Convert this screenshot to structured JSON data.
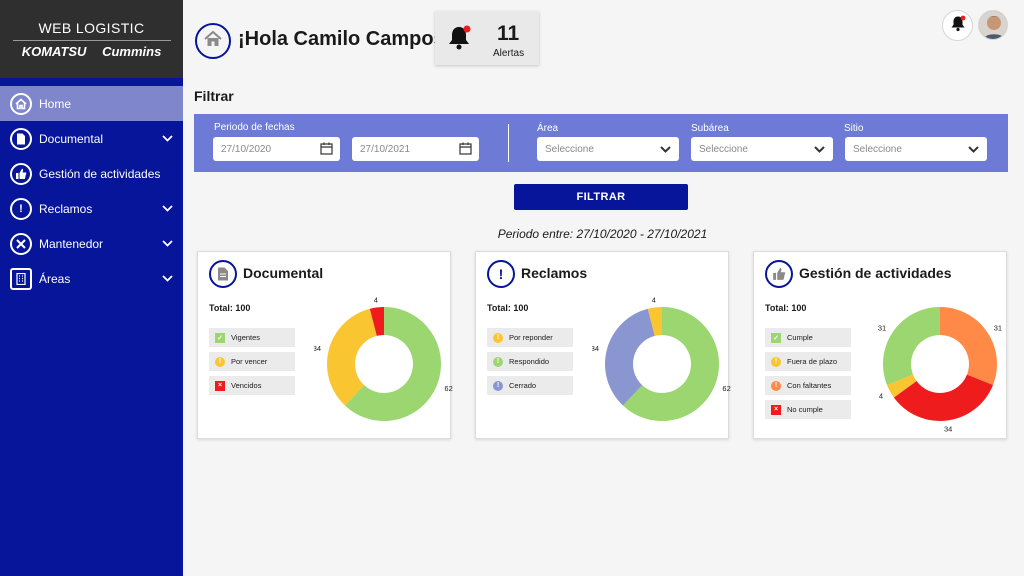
{
  "brand": {
    "title": "WEB LOGISTIC",
    "logo_left": "KOMATSU",
    "logo_right": "Cummins"
  },
  "nav": [
    {
      "label": "Home",
      "icon": "home-icon",
      "active": true,
      "expandable": false
    },
    {
      "label": "Documental",
      "icon": "document-icon",
      "active": false,
      "expandable": true
    },
    {
      "label": "Gestión de actividades",
      "icon": "thumbs-up-icon",
      "active": false,
      "expandable": false
    },
    {
      "label": "Reclamos",
      "icon": "exclamation-icon",
      "active": false,
      "expandable": true
    },
    {
      "label": "Mantenedor",
      "icon": "tools-icon",
      "active": false,
      "expandable": true
    },
    {
      "label": "Áreas",
      "icon": "building-icon",
      "active": false,
      "expandable": true
    }
  ],
  "header": {
    "greeting": "¡Hola Camilo Campos!",
    "alerts_count": "11",
    "alerts_label": "Alertas"
  },
  "filter": {
    "title": "Filtrar",
    "date_label": "Periodo de fechas",
    "date_from": "27/10/2020",
    "date_to": "27/10/2021",
    "area_label": "Área",
    "subarea_label": "Subárea",
    "site_label": "Sitio",
    "area_value": "Seleccione",
    "subarea_value": "Seleccione",
    "site_value": "Seleccione",
    "button": "FILTRAR"
  },
  "period": {
    "prefix": "Periodo entre:",
    "range": "27/10/2020 - 27/10/2021"
  },
  "colors": {
    "green": "#9bd670",
    "yellow": "#f9c631",
    "red": "#ee1c1c",
    "blue_gray": "#8a96cf",
    "orange": "#ff8a47",
    "navy": "#061599"
  },
  "cards": [
    {
      "title": "Documental",
      "icon": "document-icon",
      "total": "Total: 100",
      "legend": [
        {
          "label": "Vigentes",
          "icon": "check-icon"
        },
        {
          "label": "Por vencer",
          "icon": "exclamation-icon"
        },
        {
          "label": "Vencidos",
          "icon": "calendar-x-icon"
        }
      ],
      "chart_data": {
        "type": "pie",
        "categories": [
          "Vigentes",
          "Por vencer",
          "Vencidos"
        ],
        "values": [
          62,
          34,
          4
        ],
        "labels": [
          "62",
          "34",
          "4"
        ]
      }
    },
    {
      "title": "Reclamos",
      "icon": "exclamation-icon",
      "total": "Total: 100",
      "legend": [
        {
          "label": "Por reponder",
          "icon": "exclamation-icon"
        },
        {
          "label": "Respondido",
          "icon": "exclamation-icon"
        },
        {
          "label": "Cerrado",
          "icon": "exclamation-icon"
        }
      ],
      "chart_data": {
        "type": "pie",
        "categories": [
          "Respondido",
          "Cerrado",
          "Por reponder"
        ],
        "values": [
          62,
          34,
          4
        ],
        "labels": [
          "62",
          "34",
          "4"
        ]
      }
    },
    {
      "title": "Gestión de actividades",
      "icon": "thumbs-up-icon",
      "total": "Total: 100",
      "legend": [
        {
          "label": "Cumple",
          "icon": "check-icon"
        },
        {
          "label": "Fuera de plazo",
          "icon": "exclamation-icon"
        },
        {
          "label": "Con faltantes",
          "icon": "exclamation-icon"
        },
        {
          "label": "No cumple",
          "icon": "calendar-x-icon"
        }
      ],
      "chart_data": {
        "type": "pie",
        "categories": [
          "Con faltantes",
          "No cumple",
          "Fuera de plazo",
          "Cumple"
        ],
        "values": [
          31,
          34,
          4,
          31
        ],
        "labels": [
          "31",
          "34",
          "4",
          "31"
        ]
      }
    }
  ]
}
